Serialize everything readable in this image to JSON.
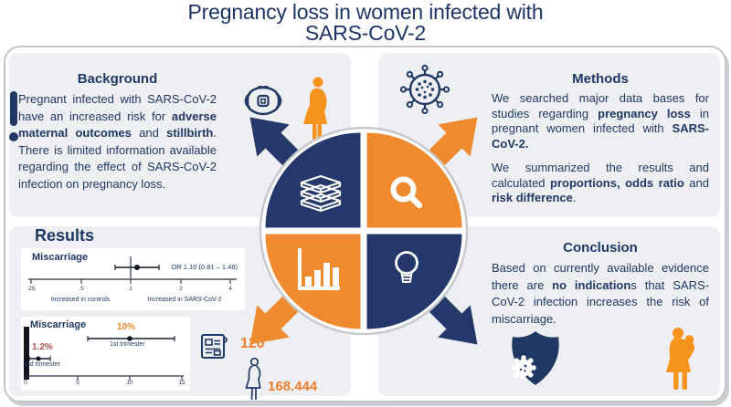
{
  "title": {
    "line1": "Pregnancy loss in women infected with",
    "line2": "SARS-CoV-2"
  },
  "background": {
    "heading": "Background",
    "body": [
      {
        "t": "Pregnant infected with SARS-CoV-2 have an increased risk for "
      },
      {
        "t": "adverse maternal outcomes",
        "b": true
      },
      {
        "t": " and "
      },
      {
        "t": "stillbirth",
        "b": true
      },
      {
        "t": ". There is limited information available regarding the effect of SARS-CoV-2 infection on pregnancy loss."
      }
    ]
  },
  "methods": {
    "heading": "Methods",
    "para1": [
      {
        "t": "We searched major data bases for studies regarding "
      },
      {
        "t": "pregnancy loss",
        "b": true
      },
      {
        "t": " in pregnant women infected with "
      },
      {
        "t": "SARS-CoV-2.",
        "b": true
      }
    ],
    "para2": [
      {
        "t": "We summarized the results and calculated "
      },
      {
        "t": "proportions, odds ratio",
        "b": true
      },
      {
        "t": " and "
      },
      {
        "t": "risk difference",
        "b": true
      },
      {
        "t": "."
      }
    ]
  },
  "results": {
    "heading": "Results",
    "plot1": {
      "label": "Miscarriage",
      "annotation": "OR 1.10 (0.81 – 1.48)",
      "ticks": [
        ".25",
        ".5",
        "1",
        "2",
        "4"
      ],
      "axis_left_label": "Increased in controls",
      "axis_right_label": "Increased in SARS-CoV-2"
    },
    "plot2": {
      "label": "Miscarriage",
      "series": [
        {
          "value_label": "10%",
          "name": "1st trimester"
        },
        {
          "value_label": "1.2%",
          "name": "2nd trimester"
        }
      ],
      "ticks": [
        "0",
        "5",
        "10",
        "15"
      ]
    },
    "studies_count": "120",
    "participants_count": "168.444"
  },
  "conclusion": {
    "heading": "Conclusion",
    "body": [
      {
        "t": "Based on currently available evidence there are "
      },
      {
        "t": "no indication",
        "b": true
      },
      {
        "t": "s that SARS-CoV-2 infection increases the risk of miscarriage."
      }
    ]
  },
  "icons": {
    "background": [
      "exclamation",
      "face-mask",
      "pregnant-woman"
    ],
    "methods": [
      "coronavirus"
    ],
    "results": [
      "newspaper",
      "pregnant-woman-outline"
    ],
    "conclusion": [
      "shield-with-virus",
      "mother-with-baby"
    ],
    "center_wheel": [
      "books",
      "magnifier",
      "bar-chart",
      "lightbulb"
    ]
  },
  "colors": {
    "navy": "#1F3864",
    "orange": "#EF8A2F",
    "orange_text": "#EE7E2B",
    "red_label": "#B4534B",
    "card_bg": "#EDEFF2",
    "panel_border": "#C2C5C9"
  },
  "chart_data": [
    {
      "type": "forest_or",
      "title": "Miscarriage",
      "point_estimate": 1.1,
      "ci_low": 0.81,
      "ci_high": 1.48,
      "annotation": "OR 1.10 (0.81 – 1.48)",
      "x_scale": "log",
      "x_ticks": [
        0.25,
        0.5,
        1,
        2,
        4
      ],
      "ref_line": 1,
      "x_left_label": "Increased in controls",
      "x_right_label": "Increased in SARS-CoV-2"
    },
    {
      "type": "forest_proportion",
      "title": "Miscarriage",
      "series": [
        {
          "name": "1st trimester",
          "value_pct": 10,
          "ci_low_pct": 6,
          "ci_high_pct": 14.5
        },
        {
          "name": "2nd trimester",
          "value_pct": 1.2,
          "ci_low_pct": 0.4,
          "ci_high_pct": 2.4
        }
      ],
      "x_ticks": [
        0,
        5,
        10,
        15
      ],
      "x_range": [
        0,
        15.5
      ]
    }
  ]
}
